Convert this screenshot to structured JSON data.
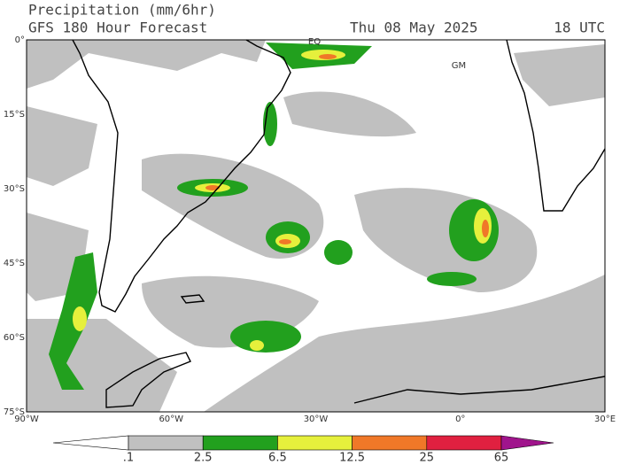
{
  "header": {
    "title": "Precipitation (mm/6hr)",
    "subtitle": "GFS 180 Hour Forecast",
    "date": "Thu 08 May 2025",
    "time": "18 UTC"
  },
  "map": {
    "lat_labels": [
      "0°",
      "15°S",
      "30°S",
      "45°S",
      "60°S",
      "75°S"
    ],
    "lon_labels": [
      "90°W",
      "60°W",
      "30°W",
      "0°",
      "30°E"
    ],
    "annotations": [
      "EQ",
      "GM"
    ]
  },
  "legend": {
    "labels": [
      ".1",
      "2.5",
      "6.5",
      "12.5",
      "25",
      "65"
    ],
    "colors": [
      "#ffffff",
      "#c0c0c0",
      "#22a01e",
      "#e6f03c",
      "#f07828",
      "#e02040",
      "#a0148c"
    ]
  }
}
